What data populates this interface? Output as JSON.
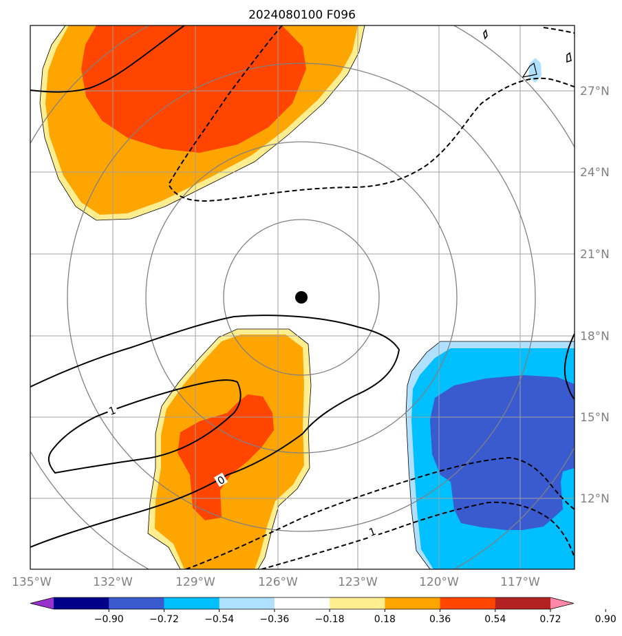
{
  "title": "2024080100 F096",
  "map": {
    "lon_ticks": [
      "135°W",
      "132°W",
      "129°W",
      "126°W",
      "123°W",
      "120°W",
      "117°W"
    ],
    "lat_ticks": [
      "27°N",
      "24°N",
      "21°N",
      "18°N",
      "15°N",
      "12°N"
    ],
    "center_marker": "storm-center",
    "contour_labels": [
      "1",
      "0",
      "1"
    ]
  },
  "colorbar": {
    "ticks": [
      "−0.90",
      "−0.72",
      "−0.54",
      "−0.36",
      "−0.18",
      "0.18",
      "0.36",
      "0.54",
      "0.72",
      "0.90"
    ],
    "colors": [
      "#9932CC",
      "#00008B",
      "#3A5BD0",
      "#00BFFF",
      "#B0E0FF",
      "#FFFFFF",
      "#FFEE90",
      "#FFA500",
      "#FF4500",
      "#B22222",
      "#FF88AA"
    ]
  },
  "fill_colors": {
    "light_yellow": "#FFEE90",
    "orange": "#FFA500",
    "red_orange": "#FF4500",
    "light_blue": "#B0E0FF",
    "deep_sky_blue": "#00BFFF",
    "royal_blue": "#3A5BD0"
  }
}
